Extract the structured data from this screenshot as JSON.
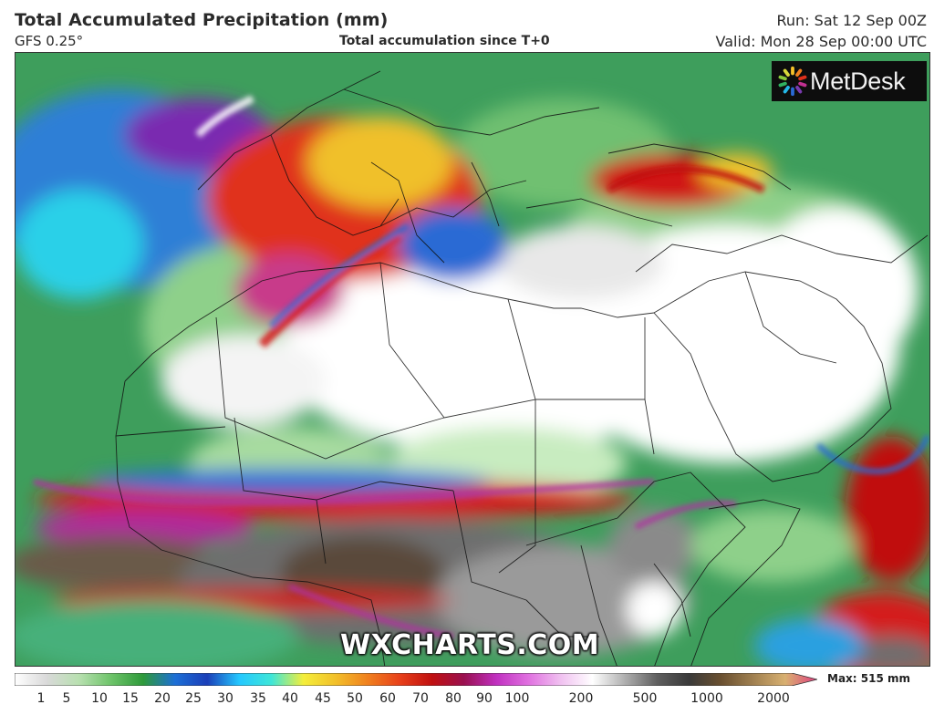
{
  "header": {
    "title": "Total Accumulated Precipitation (mm)",
    "model": "GFS 0.25°",
    "subtitle": "Total accumulation since T+0",
    "run": "Run: Sat 12 Sep 00Z",
    "valid": "Valid: Mon 28 Sep 00:00 UTC"
  },
  "logo": {
    "text": "MetDesk",
    "icon": "metdesk-star-icon"
  },
  "watermark": "WXCHARTS.COM",
  "colorbar": {
    "max_label": "Max: 515 mm",
    "ticks": [
      "1",
      "5",
      "10",
      "15",
      "20",
      "25",
      "30",
      "35",
      "40",
      "45",
      "50",
      "60",
      "70",
      "80",
      "90",
      "100",
      "200",
      "500",
      "1000",
      "2000"
    ],
    "colors": [
      "#ffffff",
      "#d9d9d9",
      "#b8e0b0",
      "#6ec46a",
      "#2e9a3a",
      "#1d6fd6",
      "#1b3fb8",
      "#24c8ff",
      "#3ee6d8",
      "#f4ee3a",
      "#f2c02a",
      "#f0801e",
      "#e8401a",
      "#c01010",
      "#9a1050",
      "#c030c0",
      "#e070e0",
      "#f0c0f0",
      "#ffffff",
      "#b0b0b0",
      "#606060",
      "#3a3a3a",
      "#6a5030",
      "#a08050",
      "#d8b070",
      "#e04080"
    ]
  },
  "map": {
    "region": "Africa / Middle East",
    "palette": {
      "sea_green": "#3aa060",
      "dry_white": "#ffffff",
      "light_green": "#8fd08a",
      "heavy_grey": "#6e6e6e",
      "extreme_brown": "#5a4a3a",
      "red": "#d01818",
      "magenta": "#b030a0",
      "blue": "#2060d0",
      "cyan": "#30c8f0"
    }
  }
}
